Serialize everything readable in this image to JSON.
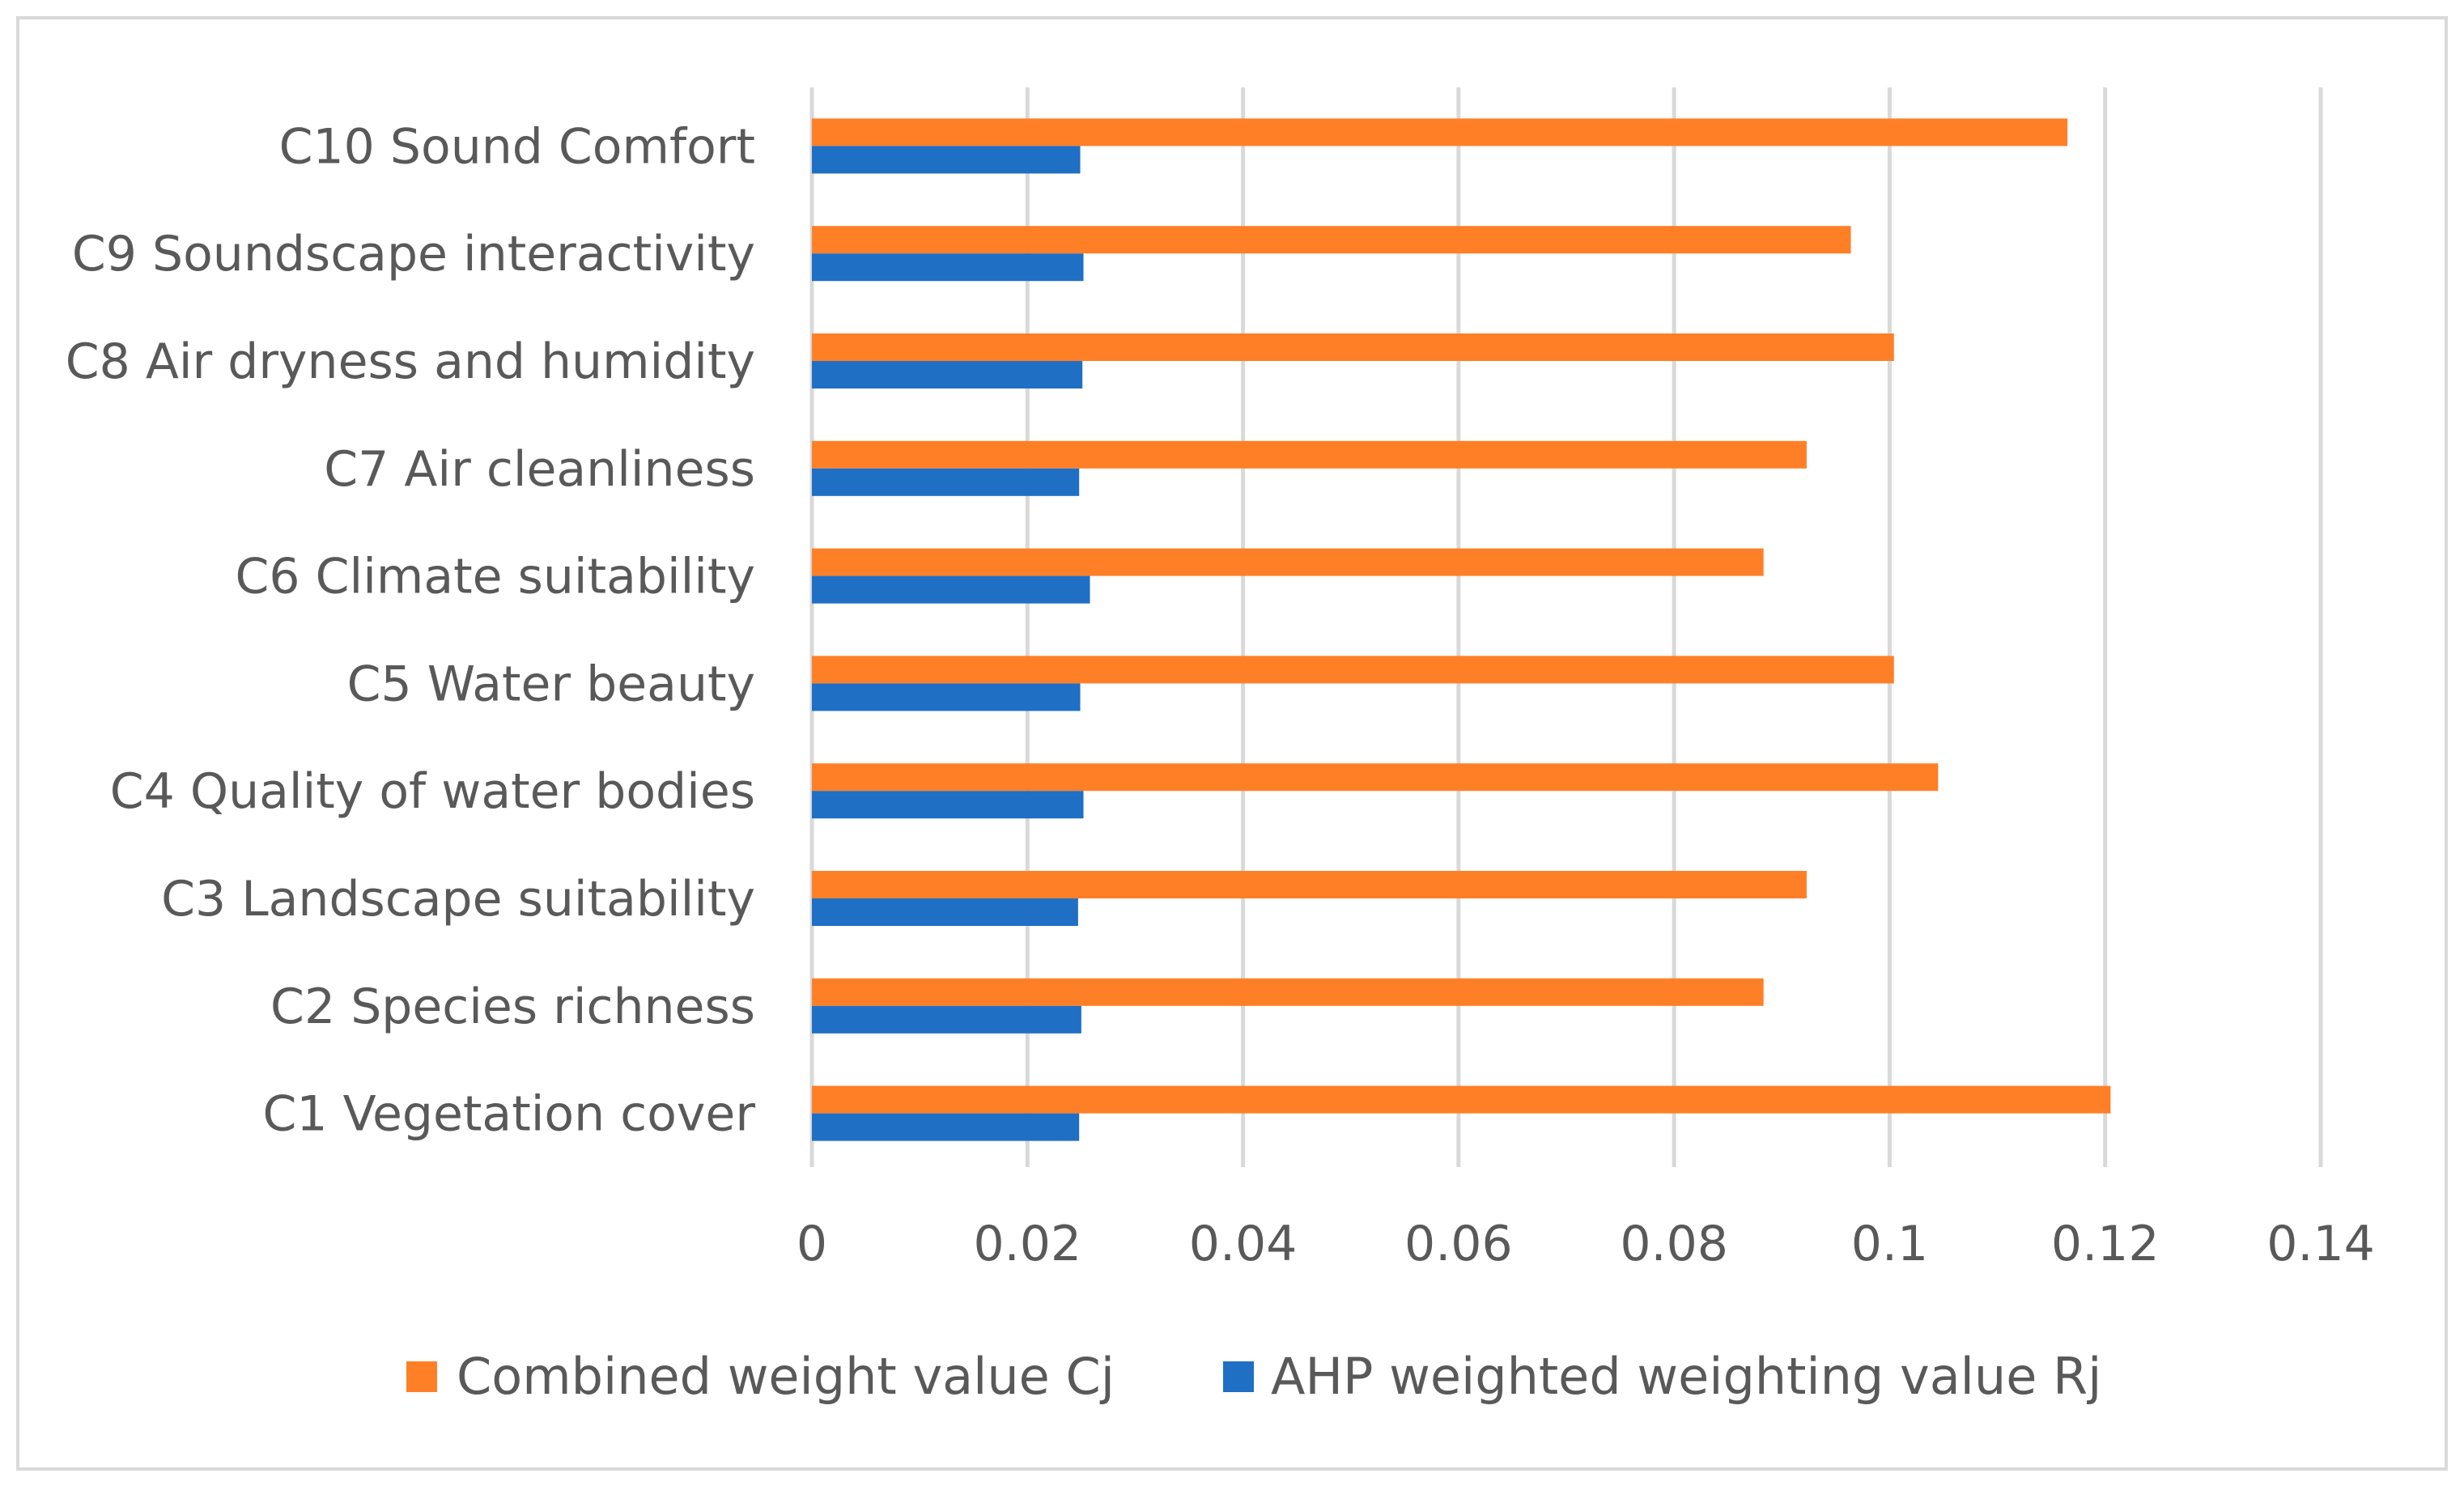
{
  "chart_data": {
    "type": "bar",
    "orientation": "horizontal",
    "title": "",
    "xlabel": "",
    "ylabel": "",
    "categories": [
      "C1 Vegetation cover",
      "C2 Species richness",
      "C3 Landscape suitability",
      "C4 Quality of water bodies",
      "C5 Water beauty",
      "C6 Climate suitability",
      "C7 Air cleanliness",
      "C8 Air dryness and humidity",
      "C9 Soundscape interactivity",
      "C10 Sound Comfort"
    ],
    "series": [
      {
        "name": "Combined weight value Cj",
        "color": "#FF7F27",
        "values": [
          0.1205,
          0.0883,
          0.0923,
          0.1045,
          0.1004,
          0.0883,
          0.0923,
          0.1004,
          0.0964,
          0.1165
        ]
      },
      {
        "name": "AHP weighted weighting value Rj",
        "color": "#1F6FC5",
        "values": [
          0.0248,
          0.025,
          0.0247,
          0.0252,
          0.0249,
          0.0258,
          0.0248,
          0.0251,
          0.0252,
          0.0249
        ]
      }
    ],
    "xlim": [
      0,
      0.14
    ],
    "ticks": [
      0,
      0.02,
      0.04,
      0.06,
      0.08,
      0.1,
      0.12,
      0.14
    ],
    "tick_labels": [
      "0",
      "0.02",
      "0.04",
      "0.06",
      "0.08",
      "0.1",
      "0.12",
      "0.14"
    ],
    "grid": true,
    "legend_position": "bottom"
  }
}
